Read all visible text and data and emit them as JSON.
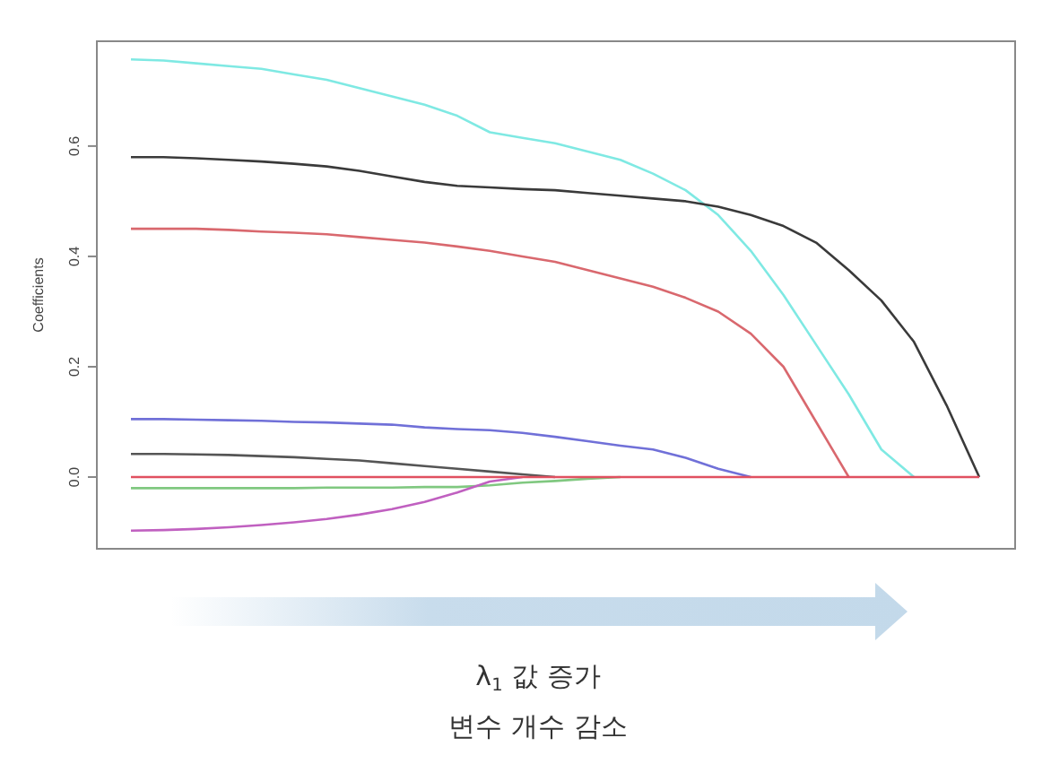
{
  "chart_data": {
    "type": "line",
    "ylabel": "Coefficients",
    "categories": [
      null,
      null,
      null,
      null,
      null,
      null,
      null,
      null,
      null,
      null,
      null,
      null,
      null,
      null,
      null,
      null,
      null,
      null,
      null,
      null,
      null,
      null,
      null,
      null,
      null,
      null,
      null
    ],
    "ylim": [
      -0.13,
      0.79
    ],
    "yticks": [
      {
        "value": 0,
        "label": "0.0"
      },
      0.2,
      0.4,
      0.6
    ],
    "tick_labels": "y",
    "grid": false,
    "marker": "none",
    "line_style": "solid",
    "annotations": [
      "λ$_{1}$ 값 증가",
      "변수 개수 감소"
    ],
    "series": [
      {
        "color": "#7fe9e3",
        "values": [
          0.757,
          0.755,
          0.75,
          0.745,
          0.74,
          0.73,
          0.72,
          0.705,
          0.69,
          0.675,
          0.655,
          0.625,
          0.615,
          0.605,
          0.59,
          0.575,
          0.55,
          0.52,
          0.475,
          0.41,
          0.33,
          0.24,
          0.15,
          0.05,
          0,
          null,
          null
        ]
      },
      {
        "color": "#3a3a3a",
        "values": [
          0.58,
          0.58,
          0.578,
          0.575,
          0.572,
          0.568,
          0.563,
          0.555,
          0.545,
          0.535,
          0.528,
          0.525,
          0.522,
          0.52,
          0.515,
          0.51,
          0.505,
          0.5,
          0.49,
          0.475,
          0.455,
          0.425,
          0.375,
          0.32,
          0.245,
          0.13,
          0
        ]
      },
      {
        "color": "#d9686e",
        "values": [
          0.45,
          0.45,
          0.45,
          0.448,
          0.445,
          0.443,
          0.44,
          0.435,
          0.43,
          0.425,
          0.418,
          0.41,
          0.4,
          0.39,
          0.375,
          0.36,
          0.345,
          0.325,
          0.3,
          0.26,
          0.2,
          0.1,
          0,
          null,
          null,
          null,
          null
        ]
      },
      {
        "color": "#7070d8",
        "values": [
          0.105,
          0.105,
          0.104,
          0.103,
          0.102,
          0.1,
          0.099,
          0.097,
          0.095,
          0.09,
          0.087,
          0.085,
          0.08,
          0.073,
          0.065,
          0.057,
          0.05,
          0.035,
          0.015,
          0,
          null,
          null,
          null,
          null,
          null,
          null,
          null
        ]
      },
      {
        "color": "#555555",
        "values": [
          0.042,
          0.042,
          0.041,
          0.04,
          0.038,
          0.036,
          0.033,
          0.03,
          0.025,
          0.02,
          0.015,
          0.01,
          0.005,
          0,
          null,
          null,
          null,
          null,
          null,
          null,
          null,
          null,
          null,
          null,
          null,
          null,
          null
        ]
      },
      {
        "color": "#80c880",
        "values": [
          -0.02,
          -0.02,
          -0.02,
          -0.02,
          -0.02,
          -0.02,
          -0.019,
          -0.019,
          -0.019,
          -0.018,
          -0.018,
          -0.015,
          -0.01,
          -0.007,
          -0.003,
          0,
          null,
          null,
          null,
          null,
          null,
          null,
          null,
          null,
          null,
          null,
          null
        ]
      },
      {
        "color": "#c060c0",
        "values": [
          -0.097,
          -0.096,
          -0.094,
          -0.091,
          -0.087,
          -0.082,
          -0.076,
          -0.068,
          -0.058,
          -0.045,
          -0.028,
          -0.008,
          0,
          null,
          null,
          null,
          null,
          null,
          null,
          null,
          null,
          null,
          null,
          null,
          null,
          null,
          null
        ]
      },
      {
        "color": "#e05060",
        "values": [
          0,
          0,
          0,
          0,
          0,
          0,
          0,
          0,
          0,
          0,
          0,
          0,
          0,
          0,
          0,
          0,
          0,
          0,
          0,
          0,
          0,
          0,
          0,
          0,
          0,
          0,
          0
        ]
      }
    ]
  }
}
